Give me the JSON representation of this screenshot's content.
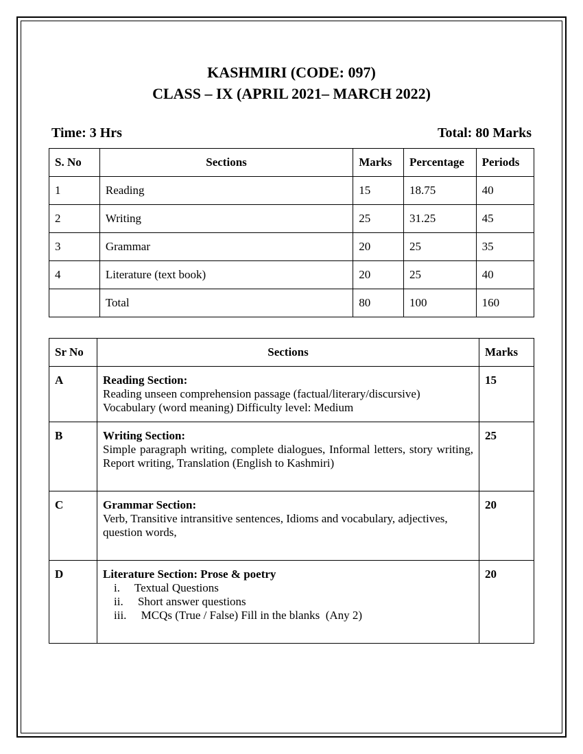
{
  "header": {
    "title": "KASHMIRI (CODE: 097)",
    "subtitle": "CLASS – IX (APRIL 2021– MARCH 2022)"
  },
  "info": {
    "time": "Time: 3 Hrs",
    "total": "Total:  80 Marks"
  },
  "table1": {
    "headers": {
      "sno": "S. No",
      "sections": "Sections",
      "marks": "Marks",
      "percentage": "Percentage",
      "periods": "Periods"
    },
    "rows": [
      {
        "sno": "1",
        "section": "Reading",
        "marks": "15",
        "percentage": "18.75",
        "periods": "40"
      },
      {
        "sno": "2",
        "section": " Writing",
        "marks": "25",
        "percentage": "31.25",
        "periods": "45"
      },
      {
        "sno": "3",
        "section": "Grammar",
        "marks": "20",
        "percentage": "25",
        "periods": "35"
      },
      {
        "sno": "4",
        "section": "Literature (text book)",
        "marks": "20",
        "percentage": "25",
        "periods": "40"
      },
      {
        "sno": "",
        "section": "Total",
        "marks": "80",
        "percentage": "100",
        "periods": "160"
      }
    ]
  },
  "table2": {
    "headers": {
      "srno": "Sr No",
      "sections": "Sections",
      "marks": "Marks"
    },
    "rows": [
      {
        "srno": "A",
        "title": "Reading Section:",
        "content": "Reading unseen comprehension passage (factual/literary/discursive) Vocabulary (word meaning)  Difficulty level: Medium",
        "marks": "15"
      },
      {
        "srno": "B",
        "title": "Writing Section:",
        "content": "Simple paragraph writing, complete dialogues, Informal letters, story writing, Report writing, Translation (English to Kashmiri)",
        "marks": "25",
        "extraSpace": true
      },
      {
        "srno": "C",
        "title": "Grammar Section:",
        "content": " Verb, Transitive intransitive sentences,   Idioms and vocabulary, adjectives, question words,",
        "marks": "20",
        "extraSpace": true
      },
      {
        "srno": "D",
        "title": "Literature Section:  Prose & poetry",
        "listItems": [
          "i.     Textual Questions",
          "ii.     Short answer questions",
          "iii.     MCQs (True / False) Fill in the blanks  (Any 2)"
        ],
        "marks": "20",
        "extraSpace": true
      }
    ]
  }
}
